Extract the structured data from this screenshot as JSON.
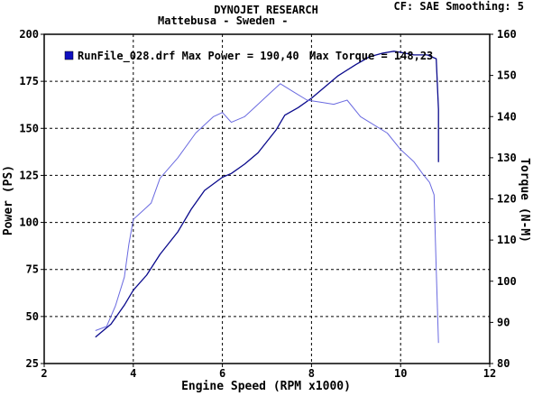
{
  "header": {
    "company": "DYNOJET RESEARCH",
    "customer": "Mattebusa - Sweden -",
    "settings": "CF: SAE  Smoothing: 5"
  },
  "legend": {
    "text": "RunFile_028.drf Max Power = 190,40",
    "torque_text": "Max Torque = 148,23",
    "swatch_color": "#1010c0"
  },
  "chart_data": {
    "type": "line",
    "title": "",
    "xlabel": "Engine Speed (RPM x1000)",
    "ylabel_left": "Power (PS)",
    "ylabel_right": "Torque (N-M)",
    "xlim": [
      2,
      12
    ],
    "ylim_left": [
      25,
      200
    ],
    "ylim_right": [
      80,
      160
    ],
    "x_ticks": [
      2,
      4,
      6,
      8,
      10,
      12
    ],
    "y_left_ticks": [
      25,
      50,
      75,
      100,
      125,
      150,
      175,
      200
    ],
    "y_right_ticks": [
      80,
      90,
      100,
      110,
      120,
      130,
      140,
      150,
      160
    ],
    "grid": true,
    "grid_style": "dashed",
    "series": [
      {
        "color": "#0a0a8c",
        "axis": "left",
        "x": [
          3.15,
          3.5,
          3.8,
          4.0,
          4.3,
          4.6,
          5.0,
          5.3,
          5.6,
          6.0,
          6.2,
          6.5,
          6.8,
          7.0,
          7.2,
          7.4,
          7.7,
          8.0,
          8.3,
          8.6,
          9.0,
          9.3,
          9.6,
          9.85,
          10.0,
          10.3,
          10.6,
          10.8,
          10.85,
          10.85
        ],
        "y": [
          39,
          46,
          56,
          64,
          72,
          83,
          95,
          107,
          117,
          124,
          126,
          131,
          137,
          143,
          149,
          157,
          161,
          166,
          172,
          178,
          184,
          188,
          190,
          191,
          190.4,
          189,
          189,
          187,
          160,
          132
        ]
      },
      {
        "color": "#6a6ae0",
        "axis": "right",
        "x": [
          3.15,
          3.4,
          3.6,
          3.8,
          3.9,
          4.0,
          4.2,
          4.4,
          4.6,
          5.0,
          5.4,
          5.8,
          6.0,
          6.2,
          6.5,
          6.8,
          7.0,
          7.3,
          7.6,
          7.9,
          8.2,
          8.5,
          8.8,
          9.1,
          9.4,
          9.7,
          10.0,
          10.3,
          10.5,
          10.65,
          10.75,
          10.8,
          10.85
        ],
        "y": [
          88,
          89,
          94,
          101,
          109,
          115,
          117,
          119,
          125,
          130,
          136,
          140,
          141,
          138.6,
          140,
          143,
          145,
          148,
          146,
          144,
          143.5,
          143,
          144,
          140,
          138,
          136,
          132,
          129,
          126,
          124,
          121,
          103,
          85
        ]
      }
    ]
  }
}
